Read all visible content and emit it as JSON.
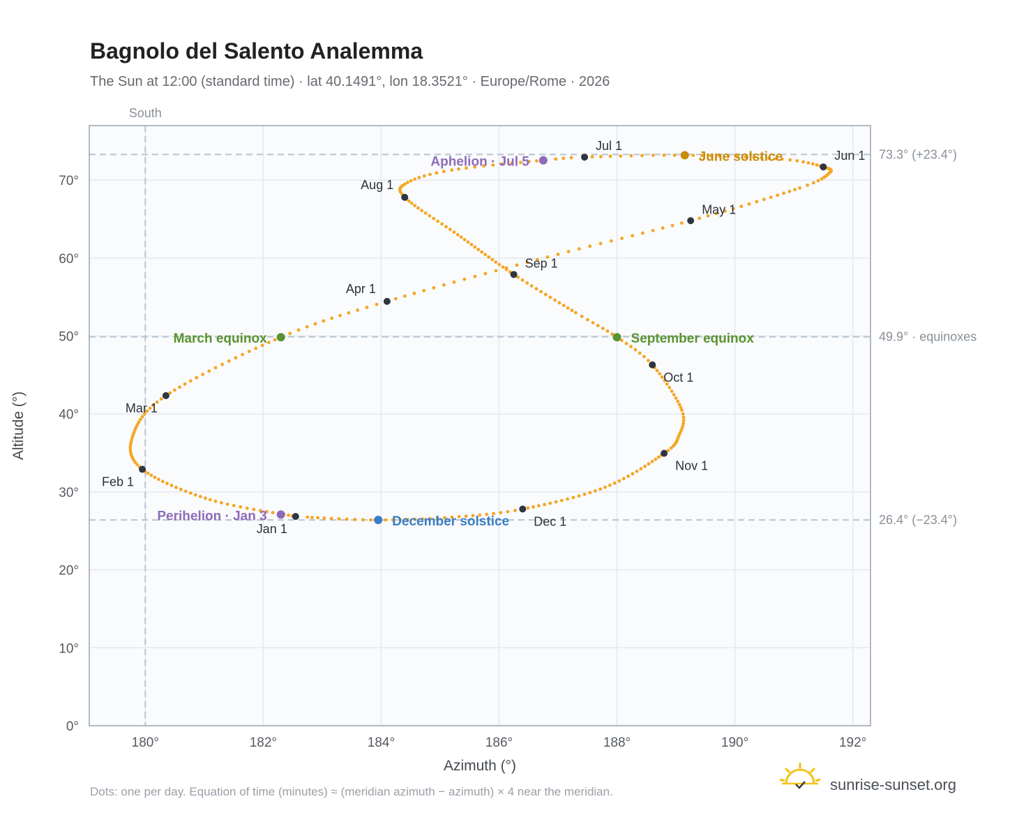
{
  "page": {
    "title": "Bagnolo del Salento Analemma",
    "subtitle": "The Sun at 12:00 (standard time) · lat 40.1491°, lon 18.3521° · Europe/Rome · 2026",
    "footnote": "Dots: one per day. Equation of time (minutes) ≈ (meridian azimuth − azimuth) × 4 near the meridian.",
    "brand": "sunrise-sunset.org"
  },
  "chart_data": {
    "type": "scatter",
    "xlabel": "Azimuth (°)",
    "ylabel": "Altitude (°)",
    "xlim": [
      179.05,
      192.3
    ],
    "ylim": [
      0,
      77
    ],
    "x_ticks": [
      180,
      182,
      184,
      186,
      188,
      190,
      192
    ],
    "x_tick_labels": [
      "180°",
      "182°",
      "184°",
      "186°",
      "188°",
      "190°",
      "192°"
    ],
    "y_ticks": [
      0,
      10,
      20,
      30,
      40,
      50,
      60,
      70
    ],
    "y_tick_labels": [
      "0°",
      "10°",
      "20°",
      "30°",
      "40°",
      "50°",
      "60°",
      "70°"
    ],
    "grid": true,
    "colors": {
      "curve": "#f5a623",
      "month_marker": "#2f3640",
      "equinox": "#5a9431",
      "june_solstice": "#c98c0a",
      "december_solstice": "#3a7dc4",
      "apsis": "#8e6bb8",
      "reference_line": "#b8c4d0",
      "frame": "#9aa4b0",
      "plot_background": "#fafbfd"
    },
    "south_line": {
      "azimuth": 180,
      "label": "South"
    },
    "reference_lines": [
      {
        "altitude": 73.3,
        "label": "73.3° (+23.4°)"
      },
      {
        "altitude": 49.9,
        "label": "49.9° · equinoxes"
      },
      {
        "altitude": 26.4,
        "label": "26.4° (−23.4°)"
      }
    ],
    "curve_series": {
      "name": "",
      "keypoints": [
        {
          "day": 1,
          "az": 182.55,
          "alt": 26.85
        },
        {
          "day": 16,
          "az": 181.1,
          "alt": 29.0
        },
        {
          "day": 32,
          "az": 179.95,
          "alt": 32.9
        },
        {
          "day": 45,
          "az": 179.78,
          "alt": 37.0
        },
        {
          "day": 60,
          "az": 180.35,
          "alt": 42.35
        },
        {
          "day": 79,
          "az": 182.3,
          "alt": 49.85
        },
        {
          "day": 91,
          "az": 184.1,
          "alt": 54.45
        },
        {
          "day": 106,
          "az": 186.65,
          "alt": 59.8
        },
        {
          "day": 121,
          "az": 189.25,
          "alt": 64.8
        },
        {
          "day": 136,
          "az": 191.1,
          "alt": 69.0
        },
        {
          "day": 144,
          "az": 191.6,
          "alt": 70.9
        },
        {
          "day": 152,
          "az": 191.5,
          "alt": 71.7
        },
        {
          "day": 160,
          "az": 190.8,
          "alt": 72.7
        },
        {
          "day": 172,
          "az": 189.15,
          "alt": 73.2
        },
        {
          "day": 182,
          "az": 187.45,
          "alt": 72.95
        },
        {
          "day": 186,
          "az": 186.75,
          "alt": 72.55
        },
        {
          "day": 197,
          "az": 185.2,
          "alt": 71.3
        },
        {
          "day": 205,
          "az": 184.45,
          "alt": 69.7
        },
        {
          "day": 213,
          "az": 184.4,
          "alt": 67.8
        },
        {
          "day": 228,
          "az": 185.3,
          "alt": 63.0
        },
        {
          "day": 244,
          "az": 186.25,
          "alt": 57.9
        },
        {
          "day": 258,
          "az": 187.3,
          "alt": 53.0
        },
        {
          "day": 266,
          "az": 188.0,
          "alt": 49.85
        },
        {
          "day": 274,
          "az": 188.6,
          "alt": 46.3
        },
        {
          "day": 288,
          "az": 189.1,
          "alt": 40.5
        },
        {
          "day": 297,
          "az": 189.05,
          "alt": 37.2
        },
        {
          "day": 305,
          "az": 188.8,
          "alt": 34.95
        },
        {
          "day": 320,
          "az": 187.8,
          "alt": 30.6
        },
        {
          "day": 335,
          "az": 186.4,
          "alt": 27.8
        },
        {
          "day": 345,
          "az": 185.2,
          "alt": 26.75
        },
        {
          "day": 355,
          "az": 183.95,
          "alt": 26.4
        },
        {
          "day": 365,
          "az": 182.75,
          "alt": 26.75
        },
        {
          "day": 366,
          "az": 182.55,
          "alt": 26.85
        }
      ]
    },
    "month_markers": [
      {
        "label": "Jan 1",
        "az": 182.55,
        "alt": 26.85,
        "anchor": "bottom-left"
      },
      {
        "label": "Feb 1",
        "az": 179.95,
        "alt": 32.9,
        "anchor": "bottom-left"
      },
      {
        "label": "Mar 1",
        "az": 180.35,
        "alt": 42.35,
        "anchor": "bottom-left"
      },
      {
        "label": "Apr 1",
        "az": 184.1,
        "alt": 54.45,
        "anchor": "top-left"
      },
      {
        "label": "May 1",
        "az": 189.25,
        "alt": 64.8,
        "anchor": "top-right"
      },
      {
        "label": "Jun 1",
        "az": 191.5,
        "alt": 71.7,
        "anchor": "top-right"
      },
      {
        "label": "Jul 1",
        "az": 187.45,
        "alt": 72.95,
        "anchor": "top-right"
      },
      {
        "label": "Aug 1",
        "az": 184.4,
        "alt": 67.8,
        "anchor": "top-left"
      },
      {
        "label": "Sep 1",
        "az": 186.25,
        "alt": 57.9,
        "anchor": "top-right"
      },
      {
        "label": "Oct 1",
        "az": 188.6,
        "alt": 46.3,
        "anchor": "bottom-right"
      },
      {
        "label": "Nov 1",
        "az": 188.8,
        "alt": 34.95,
        "anchor": "bottom-right"
      },
      {
        "label": "Dec 1",
        "az": 186.4,
        "alt": 27.8,
        "anchor": "bottom-right"
      }
    ],
    "events": [
      {
        "label": "March equinox",
        "az": 182.3,
        "alt": 49.85,
        "color": "equinox",
        "side": "left"
      },
      {
        "label": "September equinox",
        "az": 188.0,
        "alt": 49.85,
        "color": "equinox",
        "side": "right"
      },
      {
        "label": "June solstice",
        "az": 189.15,
        "alt": 73.2,
        "color": "june_solstice",
        "side": "right"
      },
      {
        "label": "December solstice",
        "az": 183.95,
        "alt": 26.4,
        "color": "december_solstice",
        "side": "right"
      },
      {
        "label": "Aphelion · Jul 5",
        "az": 186.75,
        "alt": 72.55,
        "color": "apsis",
        "side": "left"
      },
      {
        "label": "Perihelion · Jan 3",
        "az": 182.3,
        "alt": 27.1,
        "color": "apsis",
        "side": "left"
      }
    ]
  }
}
